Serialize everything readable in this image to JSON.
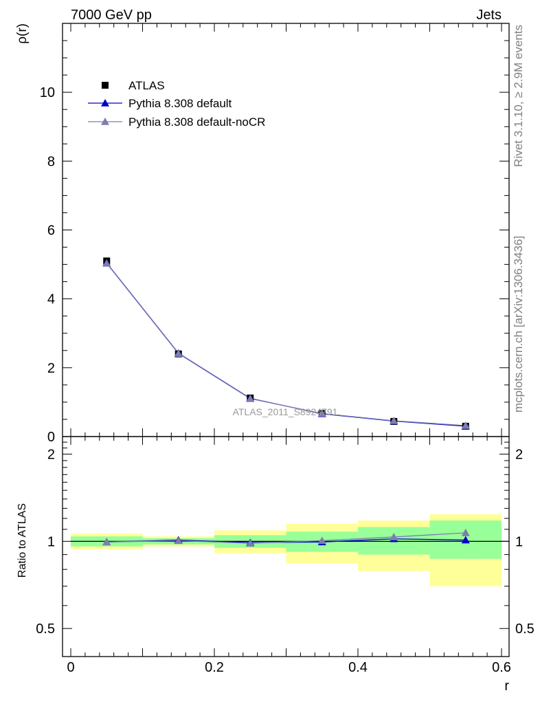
{
  "header": {
    "left": "7000 GeV pp",
    "right": "Jets"
  },
  "side_labels": {
    "rivet": "Rivet 3.1.10, ≥ 2.9M events",
    "mcplots": "mcplots.cern.ch [arXiv:1306.3436]"
  },
  "watermark": "ATLAS_2011_S8924791",
  "colors": {
    "atlas": "#000000",
    "default": "#0000cc",
    "nocr": "#7d7daf",
    "band_inner": "#99ff99",
    "band_outer": "#ffff99"
  },
  "chart_data": [
    {
      "type": "scatter",
      "panel": "main",
      "ylabel": "ρ(r)",
      "xlim": [
        0,
        0.6
      ],
      "ylim": [
        0,
        12
      ],
      "y_ticks": [
        0,
        2,
        4,
        6,
        8,
        10
      ],
      "y_tick_labels": [
        "0",
        "2",
        "4",
        "6",
        "8",
        "10"
      ],
      "legend_position": "top-left",
      "x": [
        0.05,
        0.15,
        0.25,
        0.35,
        0.45,
        0.55
      ],
      "series": [
        {
          "name": "ATLAS",
          "marker": "square",
          "values": [
            5.1,
            2.4,
            1.12,
            0.67,
            0.44,
            0.3
          ]
        },
        {
          "name": "Pythia 8.308 default",
          "marker": "triangle",
          "values": [
            5.04,
            2.42,
            1.11,
            0.66,
            0.45,
            0.3
          ]
        },
        {
          "name": "Pythia 8.308 default-noCR",
          "marker": "triangle",
          "values": [
            5.03,
            2.41,
            1.1,
            0.67,
            0.46,
            0.32
          ]
        }
      ]
    },
    {
      "type": "line",
      "panel": "ratio",
      "xlabel": "r",
      "ylabel": "Ratio to ATLAS",
      "xlim": [
        0,
        0.6
      ],
      "ylim": [
        0.4,
        2.3
      ],
      "log_y": true,
      "x_ticks": [
        0,
        0.2,
        0.4,
        0.6
      ],
      "x_tick_labels": [
        "0",
        "0.2",
        "0.4",
        "0.6"
      ],
      "y_ticks": [
        0.5,
        1,
        2
      ],
      "y_tick_labels": [
        "0.5",
        "1",
        "2"
      ],
      "x": [
        0.05,
        0.15,
        0.25,
        0.35,
        0.45,
        0.55
      ],
      "bins": [
        [
          0,
          0.1
        ],
        [
          0.1,
          0.2
        ],
        [
          0.2,
          0.3
        ],
        [
          0.3,
          0.4
        ],
        [
          0.4,
          0.5
        ],
        [
          0.5,
          0.6
        ]
      ],
      "band_inner": [
        [
          0.96,
          1.04
        ],
        [
          0.975,
          1.025
        ],
        [
          0.95,
          1.05
        ],
        [
          0.92,
          1.08
        ],
        [
          0.9,
          1.12
        ],
        [
          0.87,
          1.18
        ]
      ],
      "band_outer": [
        [
          0.94,
          1.065
        ],
        [
          0.96,
          1.04
        ],
        [
          0.91,
          1.09
        ],
        [
          0.84,
          1.15
        ],
        [
          0.79,
          1.18
        ],
        [
          0.7,
          1.24
        ]
      ],
      "series": [
        {
          "name": "Pythia 8.308 default",
          "values": [
            0.995,
            1.01,
            0.99,
            0.995,
            1.02,
            1.01
          ]
        },
        {
          "name": "Pythia 8.308 default-noCR",
          "values": [
            0.995,
            1.005,
            0.985,
            1.005,
            1.035,
            1.07
          ]
        }
      ]
    }
  ]
}
